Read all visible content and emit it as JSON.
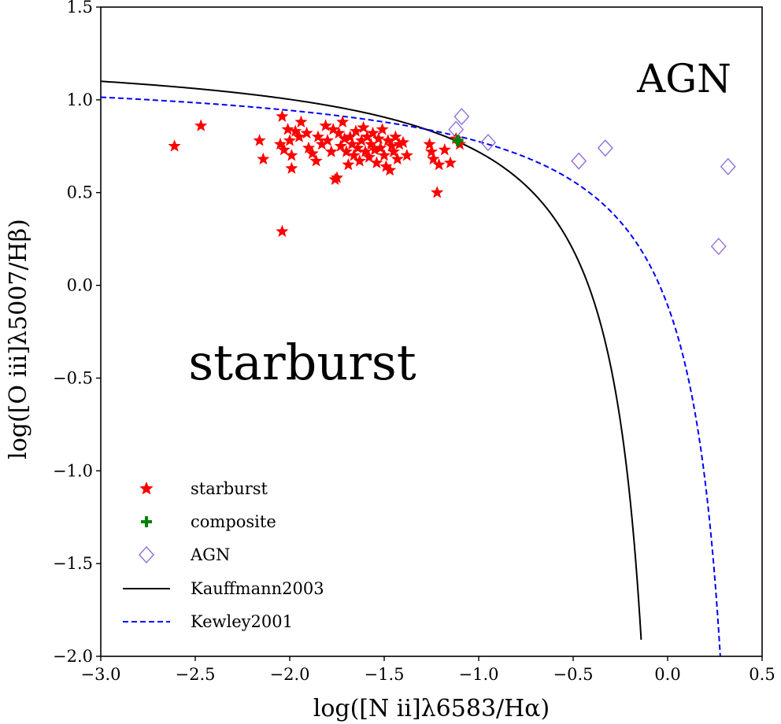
{
  "chart_data": {
    "type": "scatter",
    "title": "",
    "xlabel": "log([N ii]λ6583/Hα)",
    "ylabel": "log([O iii]λ5007/Hβ)",
    "xlim": [
      -3.0,
      0.5
    ],
    "ylim": [
      -2.0,
      1.5
    ],
    "x_ticks": [
      "−3.0",
      "−2.5",
      "−2.0",
      "−1.5",
      "−1.0",
      "−0.5",
      "0.0",
      "0.5"
    ],
    "y_ticks": [
      "−2.0",
      "−1.5",
      "−1.0",
      "−0.5",
      "0.0",
      "0.5",
      "1.0",
      "1.5"
    ],
    "x_tick_values": [
      -3.0,
      -2.5,
      -2.0,
      -1.5,
      -1.0,
      -0.5,
      0.0,
      0.5
    ],
    "y_tick_values": [
      -2.0,
      -1.5,
      -1.0,
      -0.5,
      0.0,
      0.5,
      1.0,
      1.5
    ],
    "grid": false,
    "legend_position": "lower-left",
    "annotations": {
      "agn_region": "AGN",
      "starburst_region": "starburst"
    },
    "series": [
      {
        "name": "starburst",
        "kind": "scatter",
        "marker": "star",
        "color": "#ff0000",
        "points": [
          [
            -2.61,
            0.75
          ],
          [
            -2.47,
            0.86
          ],
          [
            -2.16,
            0.78
          ],
          [
            -2.14,
            0.68
          ],
          [
            -2.04,
            0.91
          ],
          [
            -2.05,
            0.76
          ],
          [
            -2.03,
            0.73
          ],
          [
            -2.01,
            0.84
          ],
          [
            -2.0,
            0.78
          ],
          [
            -1.99,
            0.7
          ],
          [
            -1.99,
            0.63
          ],
          [
            -1.97,
            0.83
          ],
          [
            -1.95,
            0.8
          ],
          [
            -1.94,
            0.88
          ],
          [
            -1.91,
            0.82
          ],
          [
            -1.9,
            0.74
          ],
          [
            -1.88,
            0.71
          ],
          [
            -1.86,
            0.67
          ],
          [
            -1.85,
            0.8
          ],
          [
            -1.83,
            0.76
          ],
          [
            -1.81,
            0.86
          ],
          [
            -1.8,
            0.78
          ],
          [
            -1.78,
            0.72
          ],
          [
            -1.77,
            0.84
          ],
          [
            -1.76,
            0.57
          ],
          [
            -1.75,
            0.58
          ],
          [
            -1.74,
            0.82
          ],
          [
            -1.73,
            0.75
          ],
          [
            -1.72,
            0.88
          ],
          [
            -1.71,
            0.79
          ],
          [
            -1.7,
            0.72
          ],
          [
            -1.69,
            0.65
          ],
          [
            -1.68,
            0.8
          ],
          [
            -1.67,
            0.76
          ],
          [
            -1.66,
            0.7
          ],
          [
            -1.65,
            0.83
          ],
          [
            -1.64,
            0.74
          ],
          [
            -1.63,
            0.67
          ],
          [
            -1.62,
            0.78
          ],
          [
            -1.61,
            0.85
          ],
          [
            -1.6,
            0.72
          ],
          [
            -1.59,
            0.8
          ],
          [
            -1.58,
            0.69
          ],
          [
            -1.57,
            0.76
          ],
          [
            -1.56,
            0.82
          ],
          [
            -1.55,
            0.73
          ],
          [
            -1.54,
            0.66
          ],
          [
            -1.53,
            0.79
          ],
          [
            -1.52,
            0.74
          ],
          [
            -1.51,
            0.84
          ],
          [
            -1.5,
            0.7
          ],
          [
            -1.49,
            0.64
          ],
          [
            -1.48,
            0.78
          ],
          [
            -1.47,
            0.62
          ],
          [
            -1.46,
            0.75
          ],
          [
            -1.45,
            0.72
          ],
          [
            -1.44,
            0.8
          ],
          [
            -1.43,
            0.68
          ],
          [
            -1.42,
            0.76
          ],
          [
            -1.4,
            0.77
          ],
          [
            -1.38,
            0.7
          ],
          [
            -1.26,
            0.76
          ],
          [
            -1.25,
            0.72
          ],
          [
            -1.24,
            0.68
          ],
          [
            -1.22,
            0.5
          ],
          [
            -1.21,
            0.65
          ],
          [
            -1.18,
            0.73
          ],
          [
            -1.15,
            0.66
          ],
          [
            -1.1,
            0.76
          ],
          [
            -2.04,
            0.29
          ],
          [
            -1.12,
            0.79
          ]
        ]
      },
      {
        "name": "composite",
        "kind": "scatter",
        "marker": "plus",
        "color": "#008000",
        "points": [
          [
            -1.11,
            0.78
          ]
        ]
      },
      {
        "name": "AGN",
        "kind": "scatter",
        "marker": "diamond",
        "color": "#9370db",
        "points": [
          [
            -1.09,
            0.91
          ],
          [
            -1.12,
            0.84
          ],
          [
            -0.95,
            0.77
          ],
          [
            -0.47,
            0.67
          ],
          [
            -0.33,
            0.74
          ],
          [
            0.27,
            0.21
          ],
          [
            0.32,
            0.64
          ]
        ]
      },
      {
        "name": "Kauffmann2003",
        "kind": "line",
        "style": "solid",
        "color": "#000000",
        "formula": "0.61/(x-0.05)+1.3",
        "x_range": [
          -3.0,
          -0.14
        ]
      },
      {
        "name": "Kewley2001",
        "kind": "line",
        "style": "dashed",
        "color": "#0000ff",
        "formula": "0.61/(x-0.47)+1.19",
        "x_range": [
          -3.0,
          0.28
        ]
      }
    ]
  }
}
